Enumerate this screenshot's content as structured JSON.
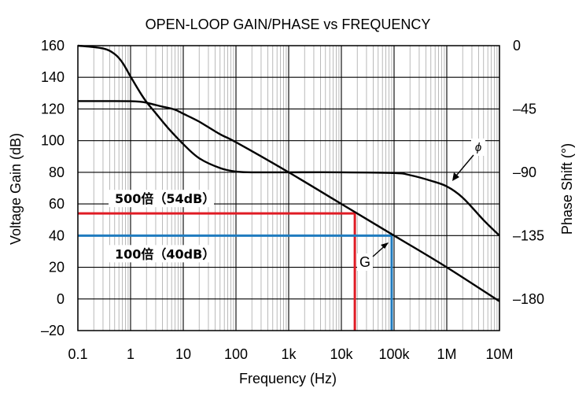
{
  "chart_data": {
    "type": "line",
    "title": "OPEN-LOOP GAIN/PHASE vs FREQUENCY",
    "xlabel": "Frequency (Hz)",
    "ylabel": "Voltage Gain (dB)",
    "y2label": "Phase Shift (°)",
    "xscale": "log",
    "xlim": [
      0.1,
      10000000
    ],
    "ylim": [
      -20,
      160
    ],
    "y2lim": [
      -202.5,
      0
    ],
    "grid": true,
    "x_ticks": [
      {
        "value": 0.1,
        "label": "0.1"
      },
      {
        "value": 1,
        "label": "1"
      },
      {
        "value": 10,
        "label": "10"
      },
      {
        "value": 100,
        "label": "100"
      },
      {
        "value": 1000,
        "label": "1k"
      },
      {
        "value": 10000,
        "label": "10k"
      },
      {
        "value": 100000,
        "label": "100k"
      },
      {
        "value": 1000000,
        "label": "1M"
      },
      {
        "value": 10000000,
        "label": "10M"
      }
    ],
    "y_ticks": [
      {
        "value": 160,
        "label": "160"
      },
      {
        "value": 140,
        "label": "140"
      },
      {
        "value": 120,
        "label": "120"
      },
      {
        "value": 100,
        "label": "100"
      },
      {
        "value": 80,
        "label": "80"
      },
      {
        "value": 60,
        "label": "60"
      },
      {
        "value": 40,
        "label": "40"
      },
      {
        "value": 20,
        "label": "20"
      },
      {
        "value": 0,
        "label": "0"
      },
      {
        "value": -20,
        "label": "–20"
      }
    ],
    "y2_ticks": [
      {
        "value": 0,
        "label": "0"
      },
      {
        "value": -45,
        "label": "–45"
      },
      {
        "value": -90,
        "label": "–90"
      },
      {
        "value": -135,
        "label": "–135"
      },
      {
        "value": -180,
        "label": "–180"
      }
    ],
    "series": [
      {
        "name": "G",
        "axis": "left",
        "x": [
          0.1,
          0.5,
          1,
          1.5,
          2,
          3,
          4,
          5,
          7,
          10,
          20,
          50,
          100,
          1000,
          10000,
          100000,
          1000000,
          10000000
        ],
        "y": [
          125,
          125,
          124.9,
          124.6,
          124,
          122.5,
          121.5,
          120.8,
          119.5,
          117,
          112,
          104,
          99,
          80,
          60,
          40,
          20,
          -1.5
        ]
      },
      {
        "name": "ϕ",
        "axis": "right",
        "x": [
          0.1,
          0.3,
          0.5,
          0.7,
          1,
          1.5,
          2,
          3,
          5,
          10,
          20,
          50,
          100,
          200,
          500,
          1000,
          10000,
          100000,
          200000,
          500000,
          1000000,
          2000000,
          5000000,
          10000000
        ],
        "y": [
          0,
          -2,
          -6,
          -12,
          -22,
          -33,
          -40,
          -48,
          -58,
          -70,
          -80,
          -87,
          -89.5,
          -90,
          -90,
          -90,
          -90,
          -90.5,
          -92,
          -96,
          -100,
          -108,
          -124,
          -135
        ]
      }
    ],
    "annotations": {
      "red_label": "500倍（54dB）",
      "red_gain": 54,
      "red_freq": 18000,
      "red_color": "#e01b24",
      "blue_label": "100倍（40dB）",
      "blue_gain": 40,
      "blue_freq": 90000,
      "blue_color": "#1f7bbf",
      "gain_curve_label": "G",
      "phase_curve_label": "ϕ"
    }
  }
}
